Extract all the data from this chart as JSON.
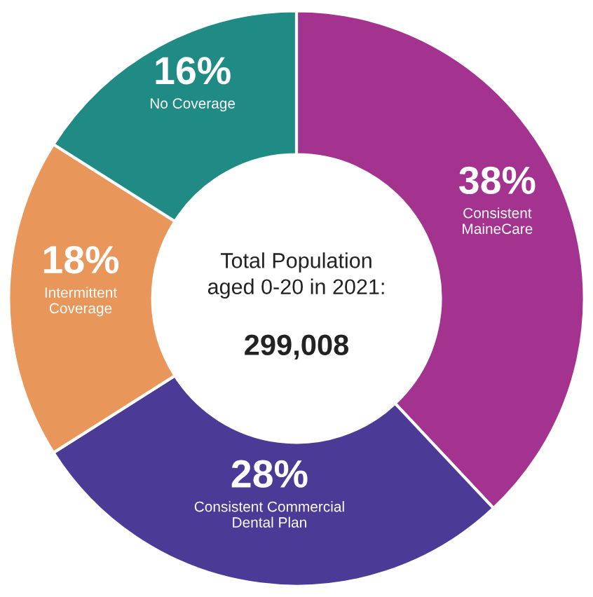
{
  "chart_data": {
    "type": "donut",
    "title": "Total Population\naged 0-20 in 2021:",
    "subtitle": "299,008",
    "categories": [
      "Consistent\nMaineCare",
      "Consistent Commercial\nDental Plan",
      "Intermittent\nCoverage",
      "No Coverage"
    ],
    "values": [
      38,
      28,
      18,
      16
    ],
    "colors": [
      "#a3338f",
      "#4b3a96",
      "#e8965a",
      "#1f8b84"
    ],
    "value_labels": [
      "38%",
      "28%",
      "18%",
      "16%"
    ],
    "legend": false
  }
}
